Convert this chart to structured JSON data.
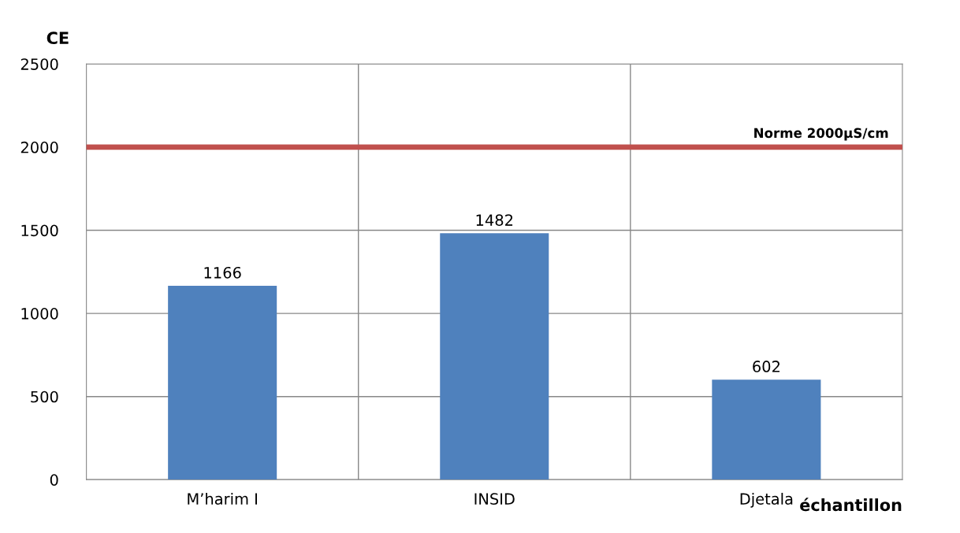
{
  "chart_data": {
    "type": "bar",
    "xlabel": "échantillon",
    "ylabel": "CE",
    "categories": [
      "M’harim I",
      "INSID",
      "Djetala"
    ],
    "values": [
      1166,
      1482,
      602
    ],
    "color": "#4f81bd",
    "data_labels": true,
    "ylim": [
      0,
      2500
    ],
    "yticks": [
      0,
      500,
      1000,
      1500,
      2000,
      2500
    ],
    "grid": true,
    "ref_lines": [
      {
        "axis": "y",
        "value": 2000,
        "label": "Norme 2000µS/cm",
        "color": "#c0504d"
      }
    ]
  }
}
